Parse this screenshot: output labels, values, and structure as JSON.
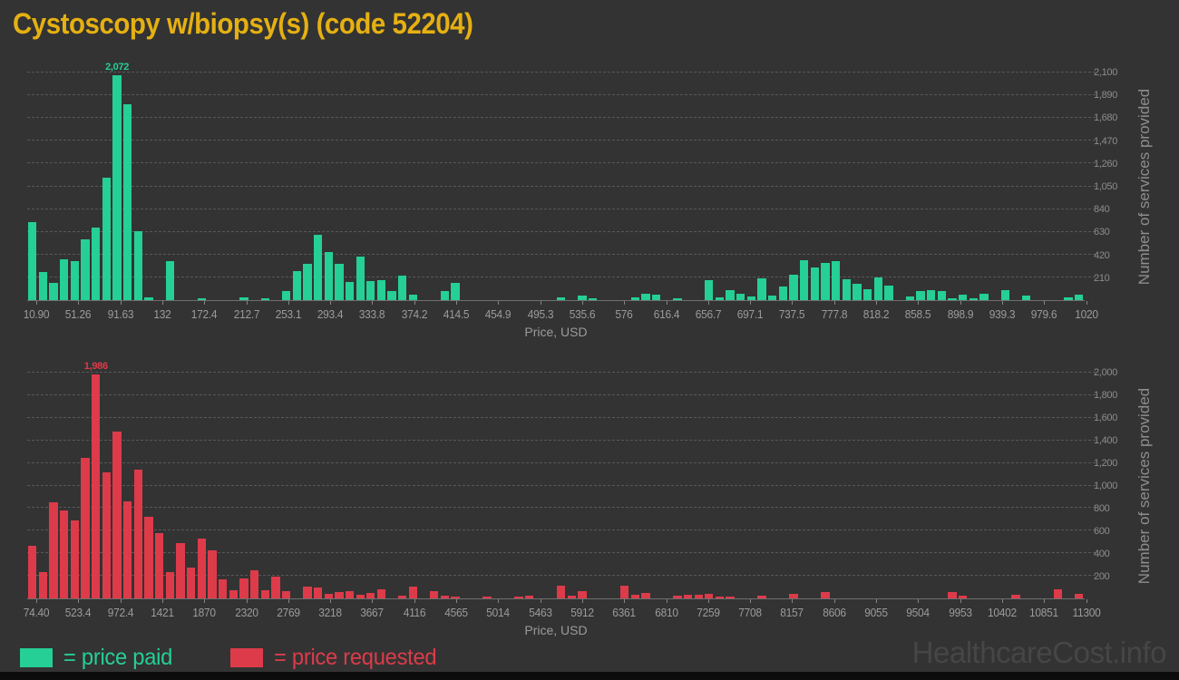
{
  "title": "Cystoscopy w/biopsy(s) (code 52204)",
  "title_color": "#e5b012",
  "background_color": "#333333",
  "watermark": "HealthcareCost.info",
  "legend": [
    {
      "label": "= price paid",
      "color": "#25cf96"
    },
    {
      "label": "= price requested",
      "color": "#dd3b4a"
    }
  ],
  "chart_data": [
    {
      "type": "bar",
      "name": "price paid",
      "color": "#25cf96",
      "xlabel": "Price, USD",
      "ylabel": "Number of services provided",
      "ymax": 2100,
      "grid": true,
      "legend_position": "bottom",
      "y_ticks": [
        {
          "value": 210,
          "label": "210"
        },
        {
          "value": 420,
          "label": "420"
        },
        {
          "value": 630,
          "label": "630"
        },
        {
          "value": 840,
          "label": "840"
        },
        {
          "value": 1050,
          "label": "1,050"
        },
        {
          "value": 1260,
          "label": "1,260"
        },
        {
          "value": 1470,
          "label": "1,470"
        },
        {
          "value": 1680,
          "label": "1,680"
        },
        {
          "value": 1890,
          "label": "1,890"
        },
        {
          "value": 2100,
          "label": "2,100"
        }
      ],
      "x_tick_labels": [
        "10.90",
        "51.26",
        "91.63",
        "132",
        "172.4",
        "212.7",
        "253.1",
        "293.4",
        "333.8",
        "374.2",
        "414.5",
        "454.9",
        "495.3",
        "535.6",
        "576",
        "616.4",
        "656.7",
        "697.1",
        "737.5",
        "777.8",
        "818.2",
        "858.5",
        "898.9",
        "939.3",
        "979.6",
        "1020"
      ],
      "peak": {
        "index": 8,
        "label": "2,072",
        "value": 2072
      },
      "values": [
        720,
        258,
        163,
        373,
        362,
        559,
        668,
        1132,
        2072,
        1806,
        638,
        25,
        0,
        360,
        0,
        0,
        20,
        0,
        0,
        0,
        23,
        0,
        11,
        0,
        80,
        267,
        331,
        604,
        444,
        337,
        168,
        399,
        177,
        188,
        84,
        225,
        48,
        0,
        0,
        84,
        160,
        0,
        0,
        0,
        0,
        0,
        0,
        0,
        0,
        0,
        22,
        0,
        39,
        17,
        0,
        0,
        0,
        28,
        62,
        53,
        0,
        20,
        0,
        0,
        183,
        28,
        90,
        56,
        34,
        202,
        42,
        124,
        236,
        365,
        300,
        343,
        356,
        194,
        152,
        98,
        210,
        132,
        0,
        34,
        84,
        90,
        84,
        17,
        48,
        11,
        56,
        0,
        95,
        0,
        39,
        0,
        0,
        0,
        22,
        53
      ]
    },
    {
      "type": "bar",
      "name": "price requested",
      "color": "#dd3b4a",
      "xlabel": "Price, USD",
      "ylabel": "Number of services provided",
      "ymax": 2000,
      "grid": true,
      "legend_position": "bottom",
      "y_ticks": [
        {
          "value": 200,
          "label": "200"
        },
        {
          "value": 400,
          "label": "400"
        },
        {
          "value": 600,
          "label": "600"
        },
        {
          "value": 800,
          "label": "800"
        },
        {
          "value": 1000,
          "label": "1,000"
        },
        {
          "value": 1200,
          "label": "1,200"
        },
        {
          "value": 1400,
          "label": "1,400"
        },
        {
          "value": 1600,
          "label": "1,600"
        },
        {
          "value": 1800,
          "label": "1,800"
        },
        {
          "value": 2000,
          "label": "2,000"
        }
      ],
      "x_tick_labels": [
        "74.40",
        "523.4",
        "972.4",
        "1421",
        "1870",
        "2320",
        "2769",
        "3218",
        "3667",
        "4116",
        "4565",
        "5014",
        "5463",
        "5912",
        "6361",
        "6810",
        "7259",
        "7708",
        "8157",
        "8606",
        "9055",
        "9504",
        "9953",
        "10402",
        "10851",
        "11300"
      ],
      "peak": {
        "index": 6,
        "label": "1,986",
        "value": 1986
      },
      "values": [
        468,
        235,
        848,
        781,
        687,
        1243,
        1986,
        1118,
        1479,
        861,
        1142,
        722,
        575,
        235,
        489,
        275,
        529,
        422,
        166,
        75,
        174,
        249,
        72,
        193,
        67,
        0,
        102,
        99,
        40,
        53,
        61,
        32,
        45,
        80,
        0,
        27,
        107,
        0,
        67,
        27,
        19,
        0,
        0,
        11,
        0,
        0,
        13,
        21,
        0,
        0,
        112,
        25,
        61,
        0,
        0,
        0,
        110,
        35,
        48,
        0,
        0,
        27,
        29,
        29,
        43,
        19,
        19,
        0,
        0,
        21,
        0,
        0,
        40,
        0,
        0,
        53,
        0,
        0,
        0,
        0,
        0,
        0,
        0,
        0,
        0,
        0,
        0,
        53,
        21,
        0,
        0,
        0,
        0,
        29,
        0,
        0,
        0,
        83,
        0,
        40
      ]
    }
  ]
}
